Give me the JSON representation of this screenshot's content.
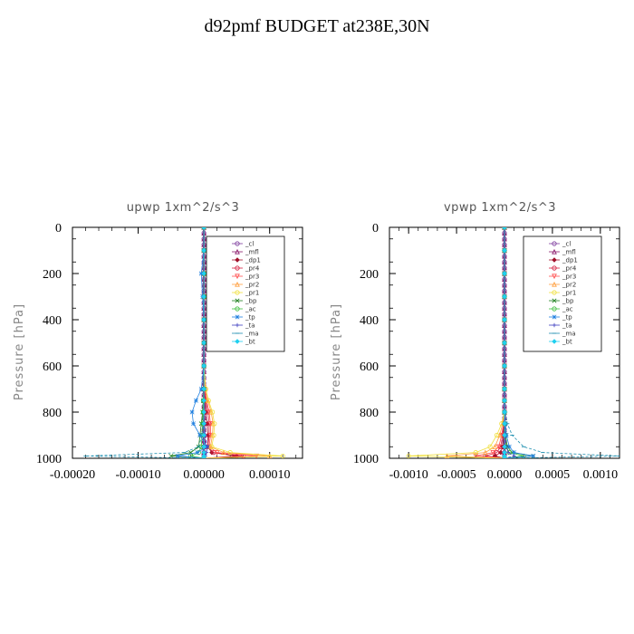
{
  "title": "d92pmf  BUDGET at238E,30N",
  "legend_labels": [
    "_cl",
    "_mfl",
    "_dp1",
    "_pr4",
    "_pr3",
    "_pr2",
    "_pr1",
    "_bp",
    "_ac",
    "_tp",
    "_ta",
    "_ma",
    "_bt"
  ],
  "series_colors": {
    "_cl": "#7f3f9f",
    "_mfl": "#8b1a6b",
    "_dp1": "#a0102a",
    "_pr4": "#d62040",
    "_pr3": "#ff5050",
    "_pr2": "#ffa040",
    "_pr1": "#f0e040",
    "_bp": "#208020",
    "_ac": "#40c040",
    "_tp": "#2080e0",
    "_ta": "#4040c0",
    "_ma": "#2090b0",
    "_bt": "#20d0f0"
  },
  "chart_data": [
    {
      "type": "line",
      "title": "upwp   1xm^2/s^3",
      "xlabel": "",
      "ylabel": "Pressure [hPa]",
      "xlim": [
        -0.0002,
        0.00015
      ],
      "ylim": [
        1000,
        0
      ],
      "x_ticks": [
        "-0.00020",
        "-0.00010",
        "0.00000",
        "0.00010"
      ],
      "x_tick_values": [
        -0.0002,
        -0.0001,
        0.0,
        0.0001
      ],
      "y_ticks": [
        "0",
        "200",
        "400",
        "600",
        "800",
        "1000"
      ],
      "y_tick_values": [
        0,
        200,
        400,
        600,
        800,
        1000
      ],
      "legend_position": "top-right",
      "pressure": [
        0,
        100,
        200,
        300,
        400,
        500,
        600,
        700,
        750,
        800,
        850,
        900,
        950,
        975,
        990,
        1000
      ],
      "series": [
        {
          "name": "_cl",
          "values": [
            0,
            0,
            0,
            0,
            0,
            0,
            0,
            0,
            0,
            0,
            0,
            0,
            0,
            0,
            0,
            0
          ]
        },
        {
          "name": "_mfl",
          "values": [
            0,
            0,
            0,
            0,
            0,
            0,
            0,
            0,
            0,
            0,
            0,
            0,
            0,
            0,
            0,
            0
          ]
        },
        {
          "name": "_dp1",
          "values": [
            0,
            0,
            0,
            0,
            0,
            0,
            0,
            0,
            2e-06,
            3e-06,
            5e-06,
            6e-06,
            6e-06,
            1.2e-05,
            5e-05,
            0.0
          ]
        },
        {
          "name": "_pr4",
          "values": [
            0,
            0,
            0,
            0,
            0,
            0,
            0,
            1e-06,
            3e-06,
            6e-06,
            8e-06,
            8e-06,
            6e-06,
            1.5e-05,
            6e-05,
            0.0
          ]
        },
        {
          "name": "_pr3",
          "values": [
            0,
            0,
            0,
            0,
            0,
            0,
            0,
            1e-06,
            4e-06,
            8e-06,
            1e-05,
            1e-05,
            8e-06,
            2e-05,
            8e-05,
            0.0
          ]
        },
        {
          "name": "_pr2",
          "values": [
            0,
            0,
            0,
            0,
            0,
            0,
            0,
            2e-06,
            6e-06,
            1.1e-05,
            1.4e-05,
            1.3e-05,
            1e-05,
            3e-05,
            0.0001,
            0.0
          ]
        },
        {
          "name": "_pr1",
          "values": [
            0,
            0,
            0,
            0,
            0,
            0,
            0,
            3e-06,
            7e-06,
            1.3e-05,
            1.6e-05,
            1.5e-05,
            1.2e-05,
            4e-05,
            0.00012,
            0.0
          ]
        },
        {
          "name": "_bp",
          "values": [
            0,
            0,
            0,
            0,
            0,
            0,
            0,
            0,
            -1e-06,
            -2e-06,
            -4e-06,
            -6e-06,
            -8e-06,
            -2e-05,
            -5e-05,
            0.0
          ]
        },
        {
          "name": "_ac",
          "values": [
            0,
            0,
            0,
            0,
            0,
            0,
            0,
            0,
            -1e-06,
            -1e-06,
            -2e-06,
            -3e-06,
            -4e-06,
            -8e-06,
            -2e-05,
            0.0
          ]
        },
        {
          "name": "_tp",
          "values": [
            0,
            0,
            -4e-06,
            -2e-06,
            0,
            0,
            0,
            -4e-06,
            -1.2e-05,
            -1.8e-05,
            -1.6e-05,
            -6e-06,
            5e-06,
            -1e-05,
            -4e-05,
            0.0
          ]
        },
        {
          "name": "_ta",
          "values": [
            0,
            0,
            0,
            0,
            0,
            0,
            0,
            0,
            0,
            0,
            0,
            2e-06,
            5e-06,
            4e-06,
            2e-06,
            0.0
          ]
        },
        {
          "name": "_ma",
          "values": [
            0,
            0,
            0,
            0,
            0,
            0,
            0,
            0,
            0,
            0,
            -1e-06,
            -3e-06,
            -8e-06,
            -3e-05,
            -0.00018,
            0.0
          ]
        },
        {
          "name": "_bt",
          "values": [
            0,
            0,
            0,
            0,
            0,
            0,
            0,
            0,
            0,
            0,
            0,
            0,
            0,
            0,
            0,
            0
          ]
        }
      ]
    },
    {
      "type": "line",
      "title": "vpwp   1xm^2/s^3",
      "xlabel": "",
      "ylabel": "Pressure [hPa]",
      "xlim": [
        -0.0012,
        0.0012
      ],
      "ylim": [
        1000,
        0
      ],
      "x_ticks": [
        "-0.0010",
        "-0.0005",
        "0.0000",
        "0.0005",
        "0.0010"
      ],
      "x_tick_values": [
        -0.001,
        -0.0005,
        0.0,
        0.0005,
        0.001
      ],
      "y_ticks": [
        "0",
        "200",
        "400",
        "600",
        "800",
        "1000"
      ],
      "y_tick_values": [
        0,
        200,
        400,
        600,
        800,
        1000
      ],
      "legend_position": "top-right",
      "pressure": [
        0,
        100,
        200,
        300,
        400,
        500,
        600,
        700,
        750,
        800,
        850,
        900,
        950,
        975,
        990,
        1000
      ],
      "series": [
        {
          "name": "_cl",
          "values": [
            0,
            0,
            0,
            0,
            0,
            0,
            0,
            0,
            0,
            0,
            0,
            0,
            0,
            0,
            0,
            0
          ]
        },
        {
          "name": "_mfl",
          "values": [
            0,
            0,
            0,
            0,
            0,
            0,
            0,
            0,
            0,
            0,
            0,
            0,
            0,
            0,
            0,
            0
          ]
        },
        {
          "name": "_dp1",
          "values": [
            0,
            0,
            0,
            0,
            0,
            0,
            0,
            0,
            0,
            0,
            -5e-06,
            -1e-05,
            -2e-05,
            -4e-05,
            -0.0001,
            0.0
          ]
        },
        {
          "name": "_pr4",
          "values": [
            0,
            0,
            0,
            0,
            0,
            0,
            0,
            0,
            0,
            0,
            -8e-06,
            -2e-05,
            -4e-05,
            -8e-05,
            -0.0002,
            0.0
          ]
        },
        {
          "name": "_pr3",
          "values": [
            0,
            0,
            0,
            0,
            0,
            0,
            0,
            0,
            0,
            0,
            -1e-05,
            -3e-05,
            -6e-05,
            -0.00012,
            -0.0003,
            0.0
          ]
        },
        {
          "name": "_pr2",
          "values": [
            0,
            0,
            0,
            0,
            0,
            0,
            0,
            0,
            0,
            0,
            -2e-05,
            -5e-05,
            -0.0001,
            -0.0002,
            -0.0006,
            0.0
          ]
        },
        {
          "name": "_pr1",
          "values": [
            0,
            0,
            0,
            0,
            0,
            0,
            0,
            0,
            0,
            0,
            -3e-05,
            -8e-05,
            -0.00015,
            -0.0003,
            -0.001,
            0.0
          ]
        },
        {
          "name": "_bp",
          "values": [
            0,
            0,
            0,
            0,
            0,
            0,
            0,
            0,
            0,
            0,
            5e-06,
            1e-05,
            3e-05,
            8e-05,
            0.0003,
            0.0
          ]
        },
        {
          "name": "_ac",
          "values": [
            0,
            0,
            0,
            0,
            0,
            0,
            0,
            0,
            0,
            0,
            5e-06,
            1e-05,
            2e-05,
            5e-05,
            0.0002,
            0.0
          ]
        },
        {
          "name": "_tp",
          "values": [
            0,
            0,
            0,
            0,
            0,
            0,
            0,
            0,
            0,
            0,
            1e-05,
            2e-05,
            5e-05,
            0.0001,
            0.0003,
            0.0
          ]
        },
        {
          "name": "_ta",
          "values": [
            0,
            0,
            0,
            0,
            0,
            0,
            0,
            0,
            0,
            0,
            5e-06,
            1e-05,
            2e-05,
            4e-05,
            0.0001,
            0.0
          ]
        },
        {
          "name": "_ma",
          "values": [
            0,
            0,
            0,
            0,
            0,
            0,
            0,
            0,
            0,
            1e-05,
            3e-05,
            8e-05,
            0.0002,
            0.0004,
            0.0012,
            0.0
          ]
        },
        {
          "name": "_bt",
          "values": [
            0,
            0,
            0,
            0,
            0,
            0,
            0,
            0,
            0,
            0,
            0,
            0,
            0,
            0,
            0,
            0
          ]
        }
      ]
    }
  ]
}
